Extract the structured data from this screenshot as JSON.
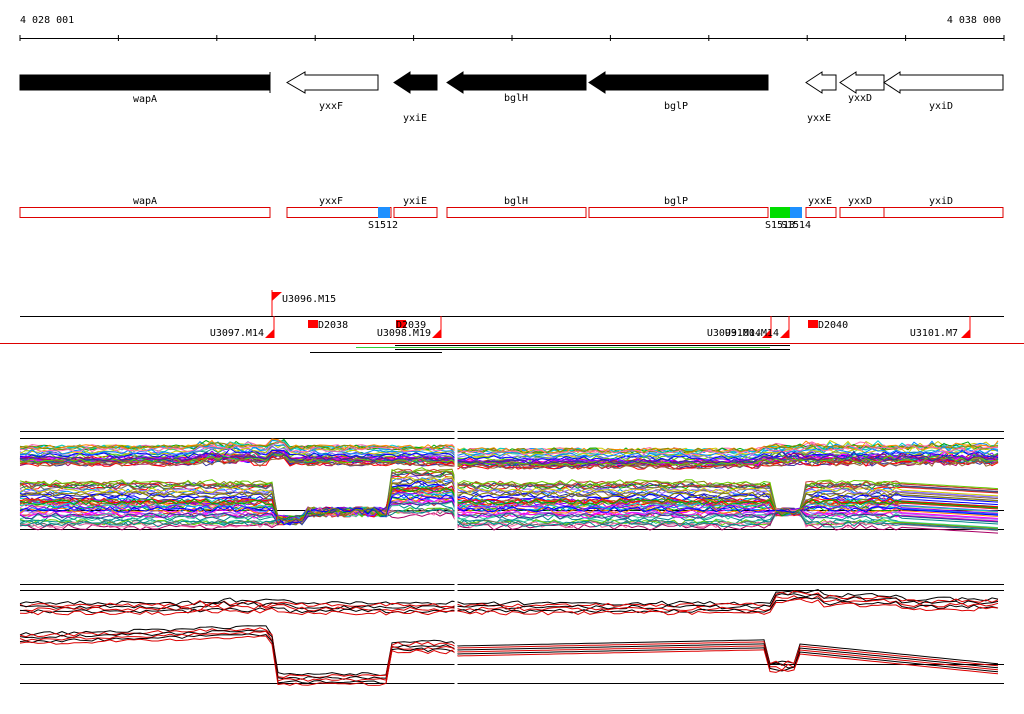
{
  "ruler": {
    "start_label": "4 028 001",
    "end_label": "4 038 000"
  },
  "genes": [
    {
      "name": "wapA",
      "strand": "+",
      "filled": true
    },
    {
      "name": "yxxF",
      "strand": "-",
      "filled": false
    },
    {
      "name": "yxiE",
      "strand": "-",
      "filled": true
    },
    {
      "name": "bglH",
      "strand": "-",
      "filled": true
    },
    {
      "name": "bglP",
      "strand": "-",
      "filled": true
    },
    {
      "name": "yxxE",
      "strand": "-",
      "filled": false
    },
    {
      "name": "yxxD",
      "strand": "-",
      "filled": false
    },
    {
      "name": "yxiD",
      "strand": "-",
      "filled": false
    }
  ],
  "gene_regions": [
    "wapA",
    "yxxF",
    "yxiE",
    "bglH",
    "bglP",
    "yxxE",
    "yxxD",
    "yxiD"
  ],
  "sites": [
    {
      "label": "S1512",
      "color": "#1e90ff"
    },
    {
      "label": "S1513",
      "color": "#00dd00"
    },
    {
      "label": "S1514",
      "color": "#1e90ff"
    }
  ],
  "features": {
    "upshifts": [
      "U3096.M15",
      "U3097.M14",
      "U3098.M19",
      "U3099.M14",
      "U3100.M14",
      "U3101.M7"
    ],
    "downshifts": [
      "D2038",
      "D2039",
      "D2040"
    ]
  },
  "colors": {
    "gene_fill": "#000000",
    "region_outline": "#dd0000",
    "shift_marker": "#ff0000",
    "summary_a": "#000000",
    "summary_b": "#dd0000",
    "track_palette": [
      "#ff0000",
      "#00aa00",
      "#0000ff",
      "#ff00ff",
      "#00cccc",
      "#cccc00",
      "#ff8800",
      "#8800ff",
      "#008888",
      "#888800",
      "#aa0066",
      "#0088ff",
      "#66cc00",
      "#996633",
      "#ff66aa",
      "#333399",
      "#cc3333",
      "#33cc99",
      "#9966ff",
      "#666666"
    ]
  }
}
